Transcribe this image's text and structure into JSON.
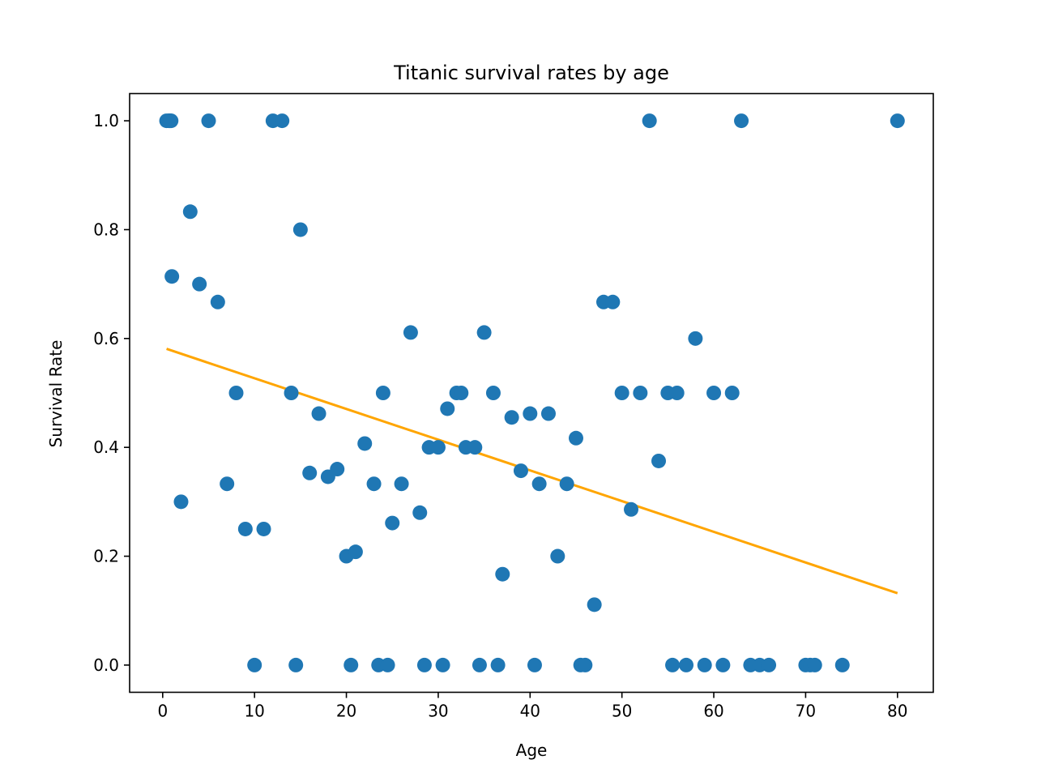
{
  "chart_data": {
    "type": "scatter",
    "title": "Titanic survival rates by age",
    "xlabel": "Age",
    "ylabel": "Survival Rate",
    "xlim": [
      -3.6,
      83.9
    ],
    "ylim": [
      -0.05,
      1.05
    ],
    "xticks": [
      0,
      10,
      20,
      30,
      40,
      50,
      60,
      70,
      80
    ],
    "xtick_labels": [
      "0",
      "10",
      "20",
      "30",
      "40",
      "50",
      "60",
      "70",
      "80"
    ],
    "yticks": [
      0.0,
      0.2,
      0.4,
      0.6,
      0.8,
      1.0
    ],
    "ytick_labels": [
      "0.0",
      "0.2",
      "0.4",
      "0.6",
      "0.8",
      "1.0"
    ],
    "grid": false,
    "legend": "none",
    "colors": {
      "points": "#1f77b4",
      "trend": "#ffa500"
    },
    "series": [
      {
        "kind": "points",
        "points": [
          [
            0.42,
            1.0
          ],
          [
            0.67,
            1.0
          ],
          [
            0.75,
            1.0
          ],
          [
            0.83,
            1.0
          ],
          [
            0.92,
            1.0
          ],
          [
            1,
            0.714
          ],
          [
            2,
            0.3
          ],
          [
            3,
            0.833
          ],
          [
            4,
            0.7
          ],
          [
            5,
            1.0
          ],
          [
            6,
            0.667
          ],
          [
            7,
            0.333
          ],
          [
            8,
            0.5
          ],
          [
            9,
            0.25
          ],
          [
            10,
            0.0
          ],
          [
            11,
            0.25
          ],
          [
            12,
            1.0
          ],
          [
            13,
            1.0
          ],
          [
            14,
            0.5
          ],
          [
            14.5,
            0.0
          ],
          [
            15,
            0.8
          ],
          [
            16,
            0.353
          ],
          [
            17,
            0.462
          ],
          [
            18,
            0.346
          ],
          [
            19,
            0.36
          ],
          [
            20,
            0.2
          ],
          [
            20.5,
            0.0
          ],
          [
            21,
            0.208
          ],
          [
            22,
            0.407
          ],
          [
            23,
            0.333
          ],
          [
            23.5,
            0.0
          ],
          [
            24,
            0.5
          ],
          [
            24.5,
            0.0
          ],
          [
            25,
            0.261
          ],
          [
            26,
            0.333
          ],
          [
            27,
            0.611
          ],
          [
            28,
            0.28
          ],
          [
            28.5,
            0.0
          ],
          [
            29,
            0.4
          ],
          [
            30,
            0.4
          ],
          [
            30.5,
            0.0
          ],
          [
            31,
            0.471
          ],
          [
            32,
            0.5
          ],
          [
            32.5,
            0.5
          ],
          [
            33,
            0.4
          ],
          [
            34,
            0.4
          ],
          [
            34.5,
            0.0
          ],
          [
            35,
            0.611
          ],
          [
            36,
            0.5
          ],
          [
            36.5,
            0.0
          ],
          [
            37,
            0.167
          ],
          [
            38,
            0.455
          ],
          [
            39,
            0.357
          ],
          [
            40,
            0.462
          ],
          [
            40.5,
            0.0
          ],
          [
            41,
            0.333
          ],
          [
            42,
            0.462
          ],
          [
            43,
            0.2
          ],
          [
            44,
            0.333
          ],
          [
            45,
            0.417
          ],
          [
            45.5,
            0.0
          ],
          [
            46,
            0.0
          ],
          [
            47,
            0.111
          ],
          [
            48,
            0.667
          ],
          [
            49,
            0.667
          ],
          [
            50,
            0.5
          ],
          [
            51,
            0.286
          ],
          [
            52,
            0.5
          ],
          [
            53,
            1.0
          ],
          [
            54,
            0.375
          ],
          [
            55,
            0.5
          ],
          [
            55.5,
            0.0
          ],
          [
            56,
            0.5
          ],
          [
            57,
            0.0
          ],
          [
            58,
            0.6
          ],
          [
            59,
            0.0
          ],
          [
            60,
            0.5
          ],
          [
            61,
            0.0
          ],
          [
            62,
            0.5
          ],
          [
            63,
            1.0
          ],
          [
            64,
            0.0
          ],
          [
            65,
            0.0
          ],
          [
            66,
            0.0
          ],
          [
            70,
            0.0
          ],
          [
            70.5,
            0.0
          ],
          [
            71,
            0.0
          ],
          [
            74,
            0.0
          ],
          [
            80,
            1.0
          ]
        ]
      },
      {
        "kind": "trend-line",
        "points": [
          [
            0.42,
            0.581
          ],
          [
            80,
            0.132
          ]
        ]
      }
    ]
  }
}
